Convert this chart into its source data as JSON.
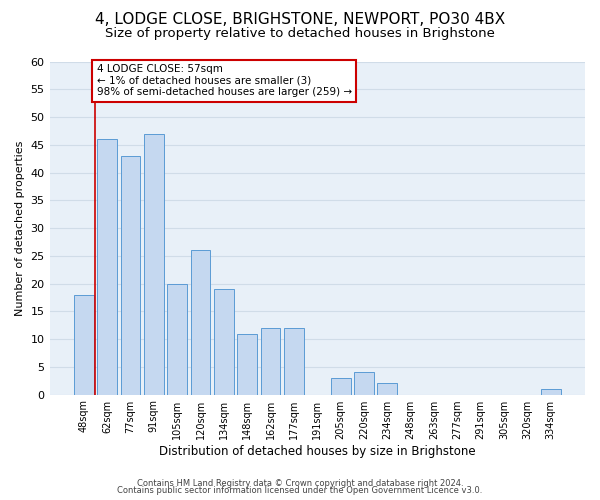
{
  "title": "4, LODGE CLOSE, BRIGHSTONE, NEWPORT, PO30 4BX",
  "subtitle": "Size of property relative to detached houses in Brighstone",
  "xlabel": "Distribution of detached houses by size in Brighstone",
  "ylabel": "Number of detached properties",
  "bar_labels": [
    "48sqm",
    "62sqm",
    "77sqm",
    "91sqm",
    "105sqm",
    "120sqm",
    "134sqm",
    "148sqm",
    "162sqm",
    "177sqm",
    "191sqm",
    "205sqm",
    "220sqm",
    "234sqm",
    "248sqm",
    "263sqm",
    "277sqm",
    "291sqm",
    "305sqm",
    "320sqm",
    "334sqm"
  ],
  "bar_values": [
    18,
    46,
    43,
    47,
    20,
    26,
    19,
    11,
    12,
    12,
    0,
    3,
    4,
    2,
    0,
    0,
    0,
    0,
    0,
    0,
    1
  ],
  "bar_color": "#c5d8f0",
  "bar_edge_color": "#5b9bd5",
  "annotation_title": "4 LODGE CLOSE: 57sqm",
  "annotation_line1": "← 1% of detached houses are smaller (3)",
  "annotation_line2": "98% of semi-detached houses are larger (259) →",
  "annotation_box_color": "#ffffff",
  "annotation_box_edge": "#cc0000",
  "highlight_line_color": "#cc0000",
  "footer1": "Contains HM Land Registry data © Crown copyright and database right 2024.",
  "footer2": "Contains public sector information licensed under the Open Government Licence v3.0.",
  "ylim": [
    0,
    60
  ],
  "yticks": [
    0,
    5,
    10,
    15,
    20,
    25,
    30,
    35,
    40,
    45,
    50,
    55,
    60
  ],
  "grid_color": "#d0dce8",
  "background_color": "#e8f0f8",
  "title_fontsize": 11,
  "subtitle_fontsize": 9.5
}
